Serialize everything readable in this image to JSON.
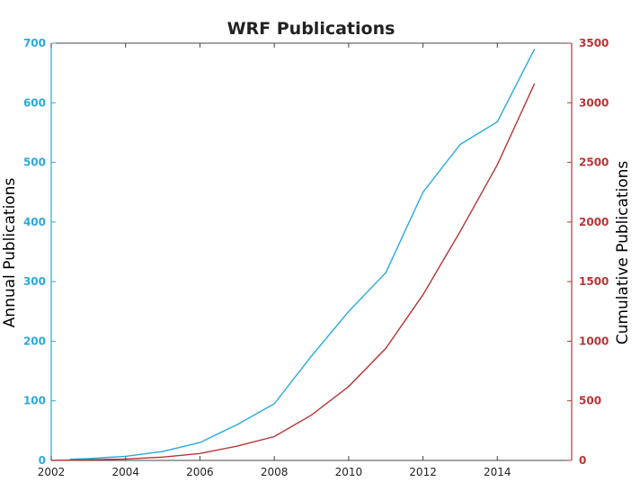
{
  "chart_data": {
    "type": "line",
    "title": "WRF Publications",
    "xlabel": "",
    "xlim": [
      2002,
      2016
    ],
    "xticks": [
      2002,
      2004,
      2006,
      2008,
      2010,
      2012,
      2014
    ],
    "y_left": {
      "label": "Annual Publications",
      "ylim": [
        0,
        700
      ],
      "ticks": [
        0,
        100,
        200,
        300,
        400,
        500,
        600,
        700
      ],
      "color": "#29a9dc"
    },
    "y_right": {
      "label": "Cumulative Publications",
      "ylim": [
        0,
        3500
      ],
      "ticks": [
        0,
        500,
        1000,
        1500,
        2000,
        2500,
        3000,
        3500
      ],
      "color": "#b83434"
    },
    "grid": false,
    "series": [
      {
        "axis": "left",
        "color": "#29a9dc",
        "x": [
          2002.5,
          2003,
          2004,
          2005,
          2006,
          2007,
          2008,
          2009,
          2010,
          2011,
          2012,
          2013,
          2014,
          2015
        ],
        "values": [
          2,
          3,
          7,
          15,
          30,
          60,
          95,
          175,
          250,
          315,
          450,
          530,
          568,
          690
        ]
      },
      {
        "axis": "right",
        "color": "#b83434",
        "x": [
          2002,
          2003,
          2004,
          2005,
          2006,
          2007,
          2008,
          2009,
          2010,
          2011,
          2012,
          2013,
          2014,
          2015
        ],
        "values": [
          0,
          5,
          12,
          28,
          58,
          120,
          200,
          380,
          620,
          940,
          1390,
          1920,
          2480,
          3160
        ]
      }
    ]
  }
}
